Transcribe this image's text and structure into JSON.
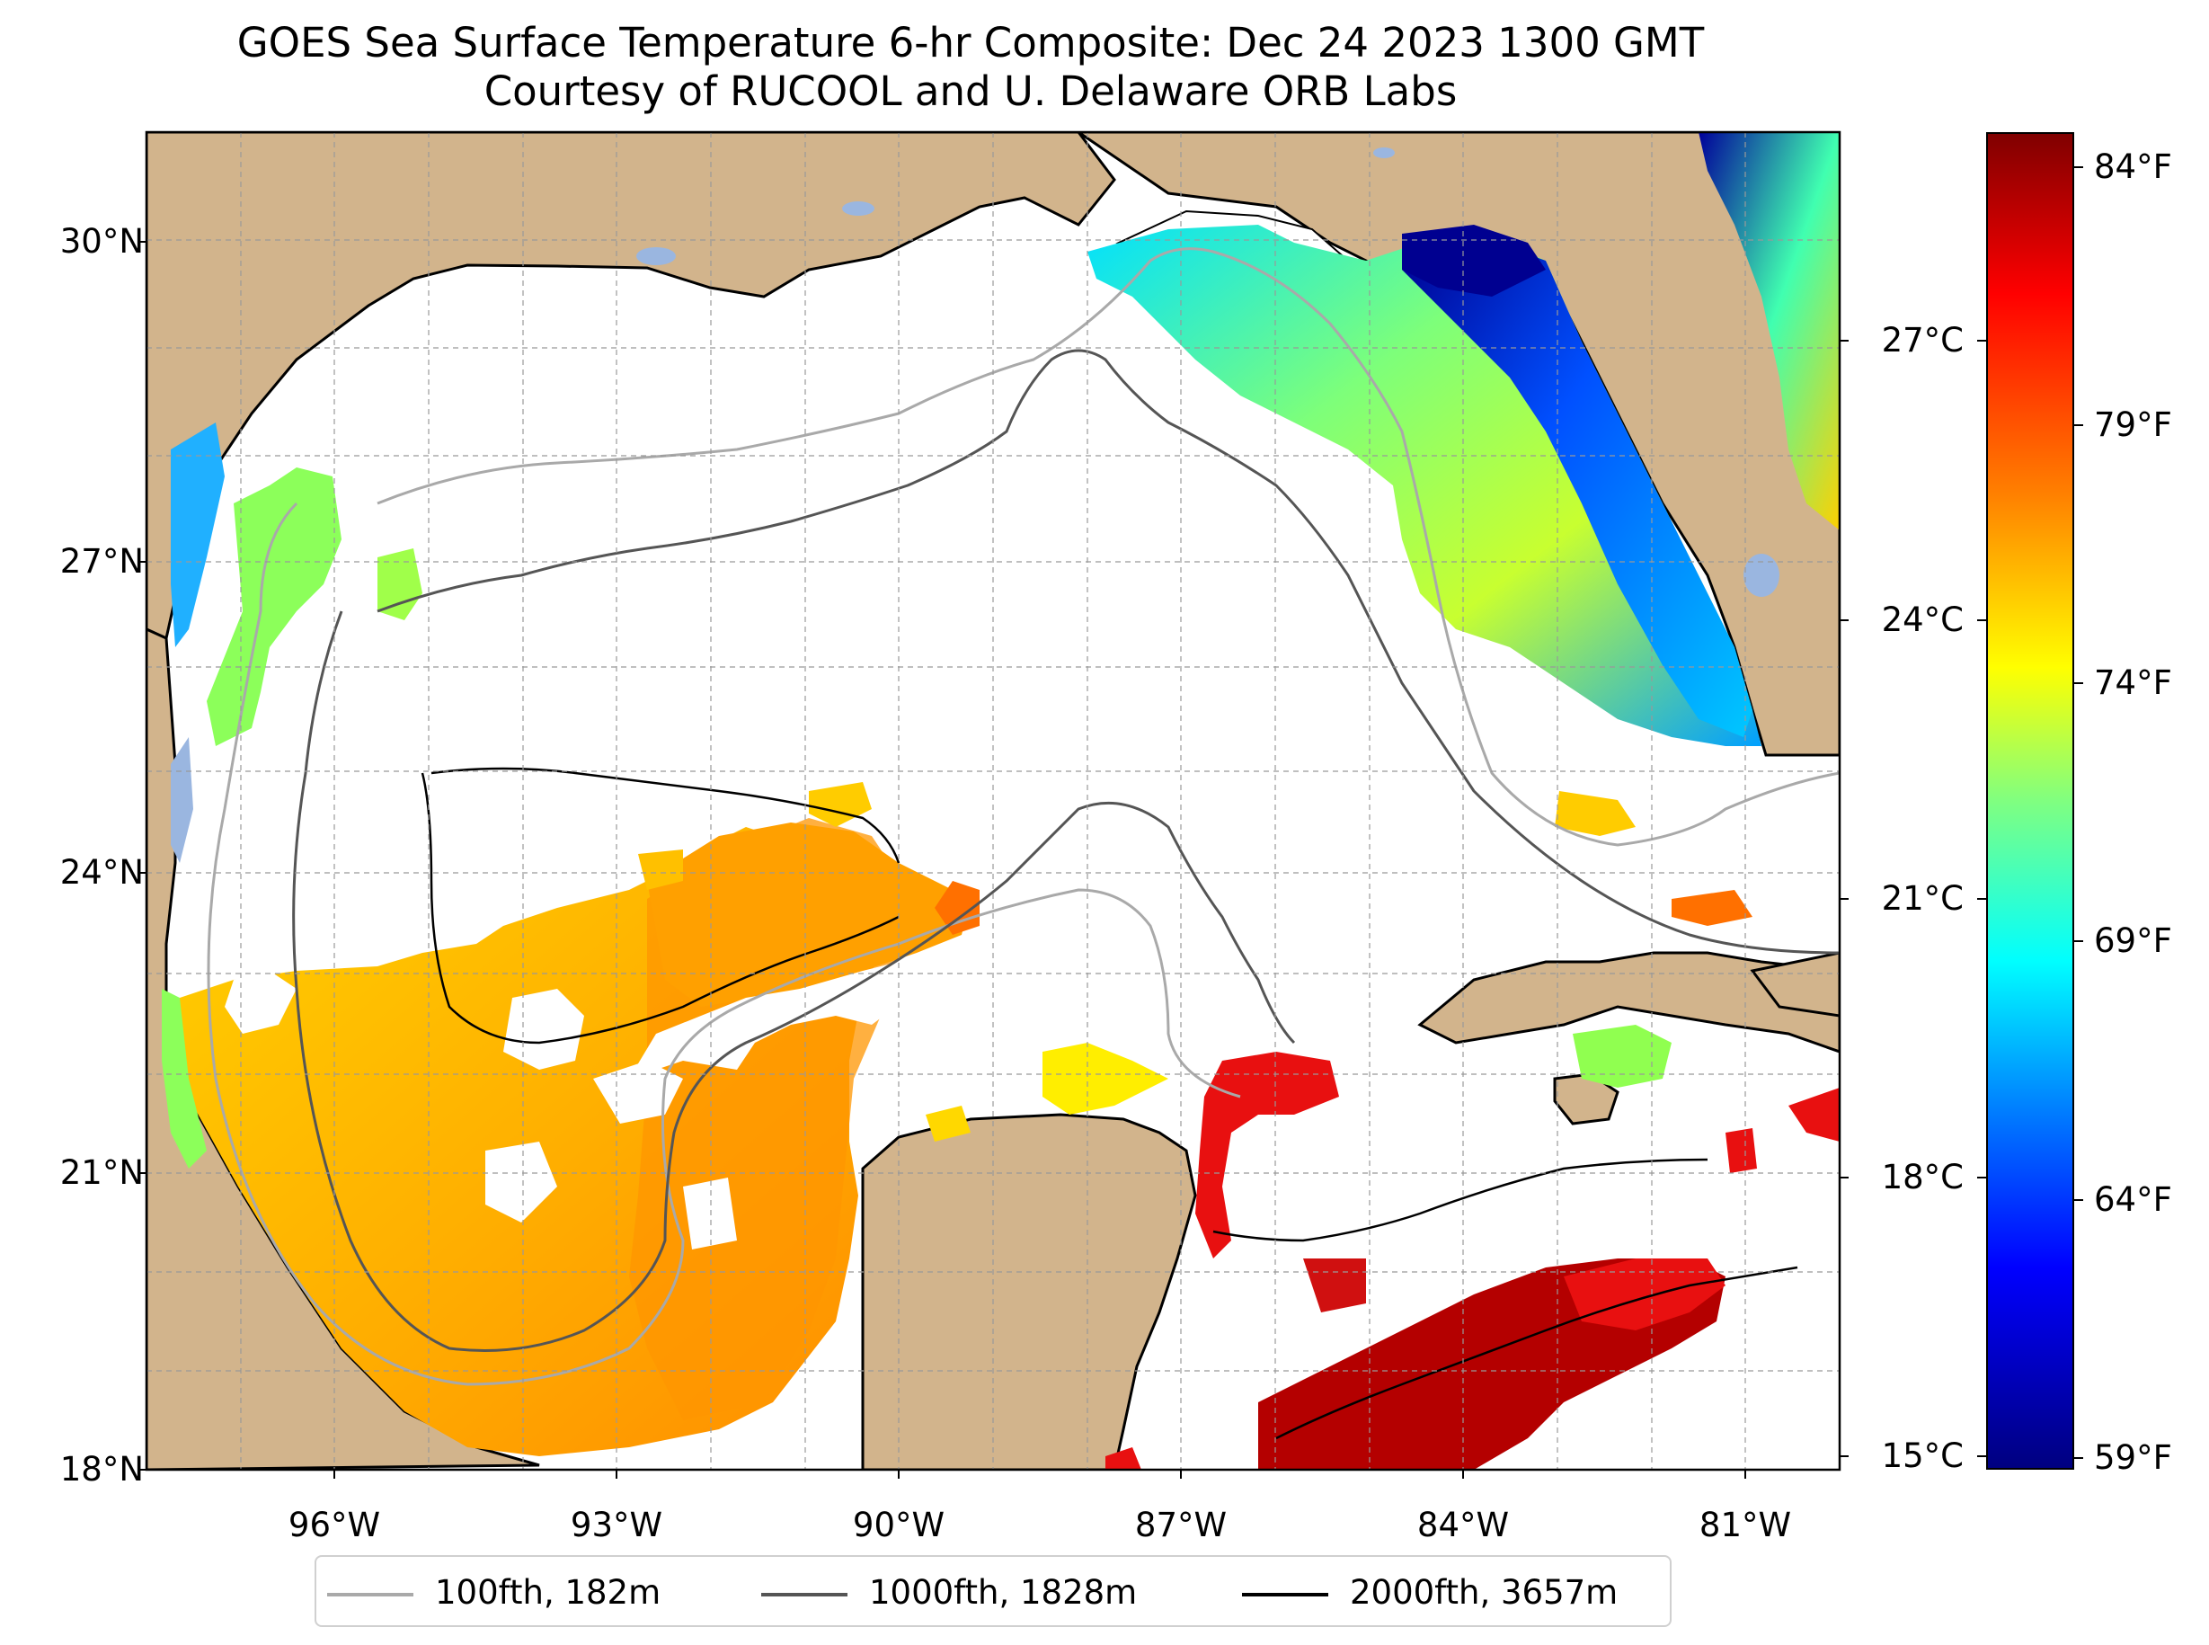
{
  "title": {
    "line1": "GOES Sea Surface Temperature 6-hr Composite: Dec 24 2023 1300 GMT",
    "line2": "Courtesy of RUCOOL and U. Delaware ORB Labs"
  },
  "axes": {
    "lat_labels": [
      "30°N",
      "27°N",
      "24°N",
      "21°N",
      "18°N"
    ],
    "lon_labels": [
      "96°W",
      "93°W",
      "90°W",
      "87°W",
      "84°W",
      "81°W"
    ]
  },
  "colorbar": {
    "celsius_labels": [
      "27°C",
      "24°C",
      "21°C",
      "18°C",
      "15°C"
    ],
    "fahrenheit_labels": [
      "84°F",
      "79°F",
      "74°F",
      "69°F",
      "64°F",
      "59°F"
    ],
    "colormap": "jet",
    "range_f": [
      59,
      84.5
    ]
  },
  "legend": {
    "items": [
      {
        "label": "100fth, 182m",
        "color": "#a9a9a9"
      },
      {
        "label": "1000fth, 1828m",
        "color": "#555555"
      },
      {
        "label": "2000fth, 3657m",
        "color": "#000000"
      }
    ]
  },
  "colors": {
    "land": "#d2b48c",
    "ocean_no_data": "#ffffff",
    "lakes": "#9ab6e0"
  },
  "map_extent": {
    "lon": [
      -98,
      -80
    ],
    "lat": [
      18,
      31
    ]
  }
}
